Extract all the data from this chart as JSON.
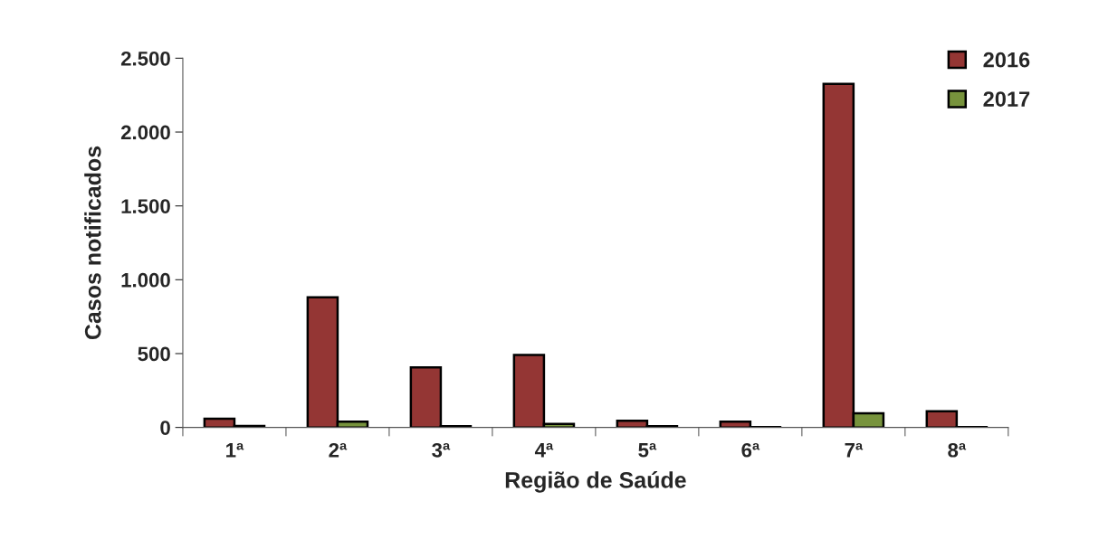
{
  "chart_data": {
    "type": "bar",
    "xlabel": "Região de Saúde",
    "ylabel": "Casos notificados",
    "categories": [
      "1ª",
      "2ª",
      "3ª",
      "4ª",
      "5ª",
      "6ª",
      "7ª",
      "8ª"
    ],
    "series": [
      {
        "name": "2016",
        "color": "#943634",
        "values": [
          59,
          881,
          406,
          491,
          45,
          39,
          2326,
          110
        ]
      },
      {
        "name": "2017",
        "color": "#77933c",
        "values": [
          10,
          39,
          8,
          23,
          8,
          3,
          96,
          2
        ]
      }
    ],
    "ylim": [
      0,
      2500
    ],
    "yticks": [
      {
        "value": 0,
        "label": "0"
      },
      {
        "value": 500,
        "label": "500"
      },
      {
        "value": 1000,
        "label": "1.000"
      },
      {
        "value": 1500,
        "label": "1.500"
      },
      {
        "value": 2000,
        "label": "2.000"
      },
      {
        "value": 2500,
        "label": "2.500"
      }
    ],
    "grid": false,
    "legend": "top right"
  }
}
